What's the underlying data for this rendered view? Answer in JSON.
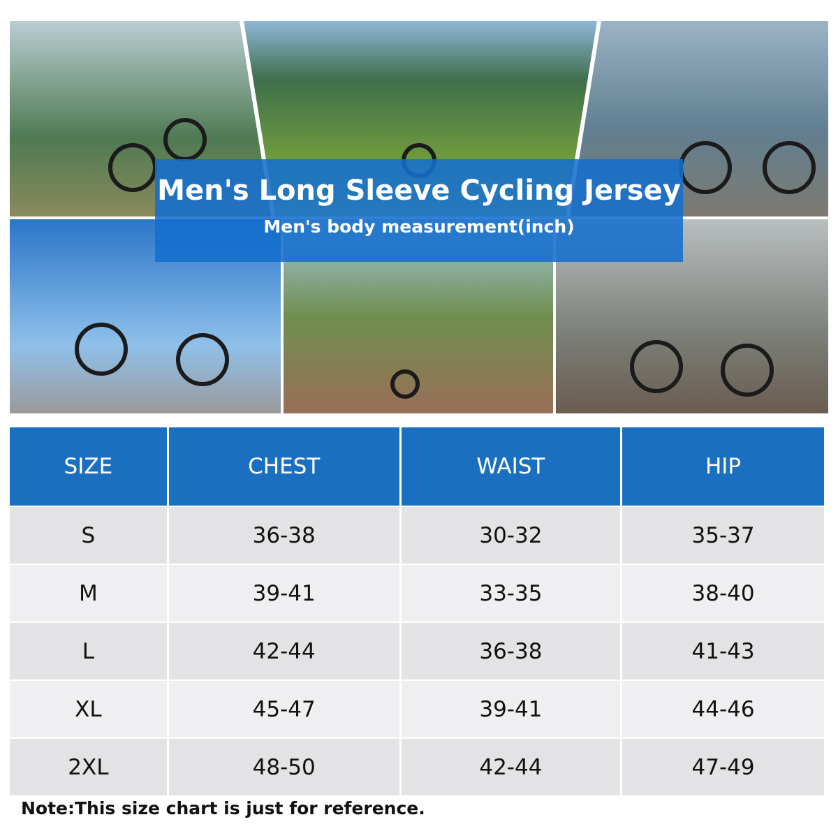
{
  "header": {
    "title": "Men's Long Sleeve Cycling Jersey",
    "subtitle": "Men's body measurement(inch)"
  },
  "table": {
    "columns": [
      "SIZE",
      "CHEST",
      "WAIST",
      "HIP"
    ],
    "rows": [
      [
        "S",
        "36-38",
        "30-32",
        "35-37"
      ],
      [
        "M",
        "39-41",
        "33-35",
        "38-40"
      ],
      [
        "L",
        "42-44",
        "36-38",
        "41-43"
      ],
      [
        "XL",
        "45-47",
        "39-41",
        "44-46"
      ],
      [
        "2XL",
        "48-50",
        "42-44",
        "47-49"
      ]
    ]
  },
  "note": "Note:This size chart is just for reference."
}
